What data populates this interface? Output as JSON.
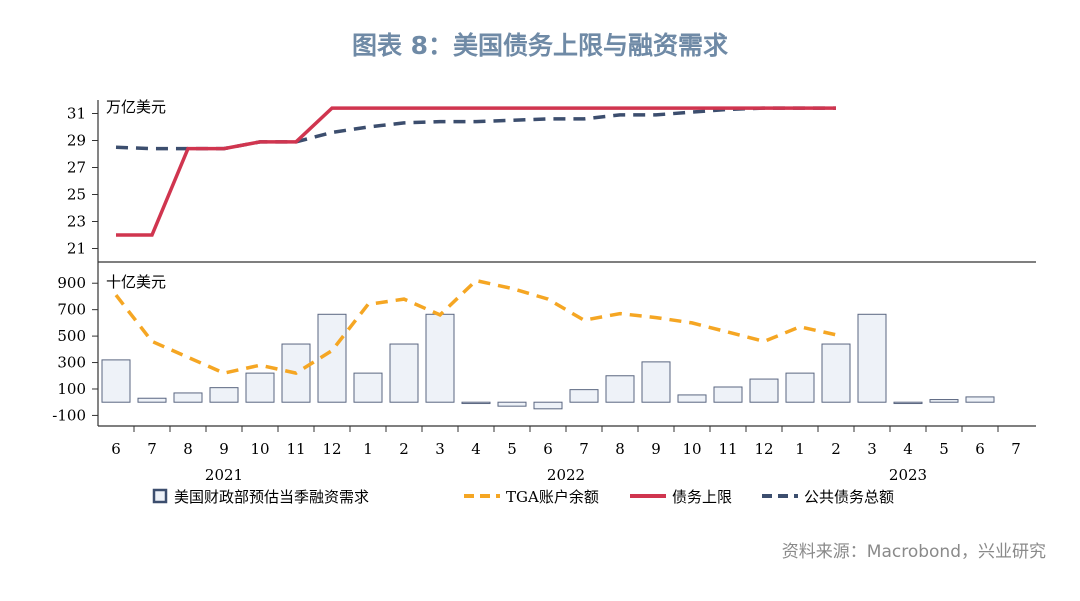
{
  "title": "图表 8：美国债务上限与融资需求",
  "source": "资料来源：Macrobond，兴业研究",
  "colors": {
    "bar_fill": "#eef2f8",
    "bar_stroke": "#5a6680",
    "tga": "#f5a623",
    "ceiling": "#d0354f",
    "debt": "#3c4e6e",
    "axis": "#333333"
  },
  "chart_data": [
    {
      "type": "line",
      "unit_label": "万亿美元",
      "ylim": [
        20,
        32
      ],
      "yticks": [
        21,
        23,
        25,
        27,
        29,
        31
      ],
      "series": [
        {
          "name": "债务上限",
          "style": "solid",
          "points": [
            [
              0,
              22.0
            ],
            [
              1,
              22.0
            ],
            [
              2,
              28.4
            ],
            [
              3,
              28.4
            ],
            [
              4,
              28.9
            ],
            [
              5,
              28.9
            ],
            [
              6,
              31.4
            ],
            [
              7,
              31.4
            ],
            [
              8,
              31.4
            ],
            [
              9,
              31.4
            ],
            [
              10,
              31.4
            ],
            [
              11,
              31.4
            ],
            [
              12,
              31.4
            ],
            [
              13,
              31.4
            ],
            [
              14,
              31.4
            ],
            [
              15,
              31.4
            ],
            [
              16,
              31.4
            ],
            [
              17,
              31.4
            ],
            [
              18,
              31.4
            ],
            [
              19,
              31.4
            ],
            [
              20,
              31.4
            ]
          ]
        },
        {
          "name": "公共债务总额",
          "style": "dashed",
          "points": [
            [
              0,
              28.5
            ],
            [
              1,
              28.4
            ],
            [
              2,
              28.4
            ],
            [
              3,
              28.4
            ],
            [
              4,
              28.9
            ],
            [
              5,
              28.9
            ],
            [
              6,
              29.6
            ],
            [
              7,
              30.0
            ],
            [
              8,
              30.3
            ],
            [
              9,
              30.4
            ],
            [
              10,
              30.4
            ],
            [
              11,
              30.5
            ],
            [
              12,
              30.6
            ],
            [
              13,
              30.6
            ],
            [
              14,
              30.9
            ],
            [
              15,
              30.9
            ],
            [
              16,
              31.1
            ],
            [
              17,
              31.3
            ],
            [
              18,
              31.4
            ],
            [
              19,
              31.4
            ],
            [
              20,
              31.4
            ]
          ]
        }
      ]
    },
    {
      "type": "bar",
      "unit_label": "十亿美元",
      "ylim": [
        -180,
        1000
      ],
      "yticks": [
        -100,
        100,
        300,
        500,
        700,
        900
      ],
      "series": [
        {
          "name": "美国财政部预估当季融资需求",
          "kind": "bar",
          "values": [
            320,
            30,
            70,
            110,
            220,
            440,
            665,
            220,
            440,
            665,
            -10,
            -30,
            -50,
            95,
            200,
            305,
            55,
            115,
            175,
            220,
            440,
            665,
            -10,
            20,
            40
          ]
        },
        {
          "name": "TGA账户余额",
          "kind": "dashed-line",
          "points": [
            [
              0,
              810
            ],
            [
              1,
              460
            ],
            [
              2,
              340
            ],
            [
              3,
              220
            ],
            [
              4,
              280
            ],
            [
              5,
              220
            ],
            [
              6,
              390
            ],
            [
              7,
              740
            ],
            [
              8,
              780
            ],
            [
              9,
              660
            ],
            [
              10,
              920
            ],
            [
              11,
              860
            ],
            [
              12,
              780
            ],
            [
              13,
              620
            ],
            [
              14,
              670
            ],
            [
              15,
              640
            ],
            [
              16,
              600
            ],
            [
              17,
              530
            ],
            [
              18,
              460
            ],
            [
              19,
              570
            ],
            [
              20,
              510
            ]
          ]
        }
      ]
    }
  ],
  "x_axis": {
    "month_labels": [
      "6",
      "7",
      "8",
      "9",
      "10",
      "11",
      "12",
      "1",
      "2",
      "3",
      "4",
      "5",
      "6",
      "7",
      "8",
      "9",
      "10",
      "11",
      "12",
      "1",
      "2",
      "3",
      "4",
      "5",
      "6",
      "7"
    ],
    "year_labels": [
      "2021",
      "2022",
      "2023"
    ]
  },
  "legend": [
    "美国财政部预估当季融资需求",
    "TGA账户余额",
    "债务上限",
    "公共债务总额"
  ]
}
